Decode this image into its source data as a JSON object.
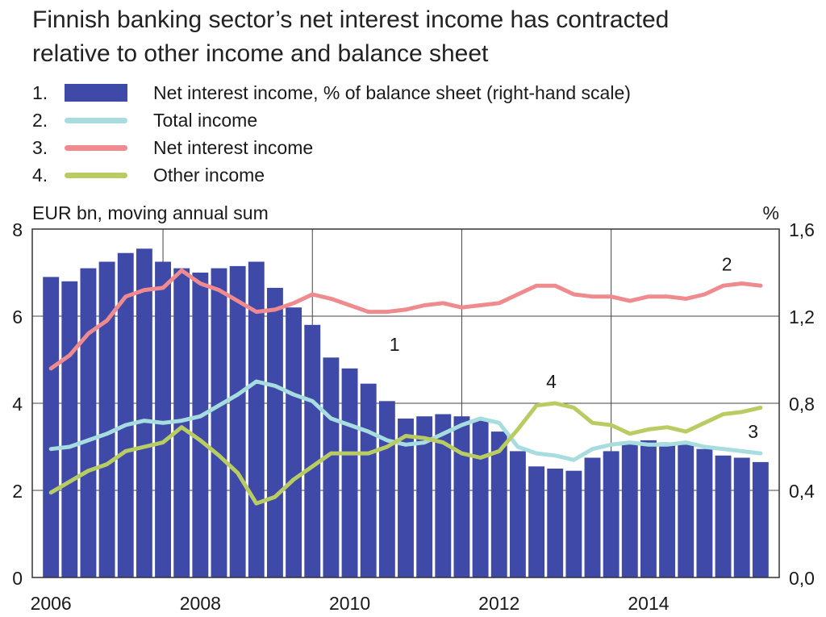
{
  "title_line1": "Finnish banking sector’s net interest income has contracted",
  "title_line2": "relative to other income and balance sheet",
  "left_axis_label": "EUR bn, moving annual sum",
  "right_axis_label": "%",
  "legend": [
    {
      "num": "1.",
      "label": "Net interest income, % of balance sheet (right-hand scale)",
      "kind": "bar",
      "color": "#3f4aa8"
    },
    {
      "num": "2.",
      "label": "Total income",
      "kind": "line",
      "color": "#a8dde0"
    },
    {
      "num": "3.",
      "label": "Net interest income",
      "kind": "line",
      "color": "#ef8a8e"
    },
    {
      "num": "4.",
      "label": "Other income",
      "kind": "line",
      "color": "#b9cc62"
    }
  ],
  "chart_data": {
    "type": "bar+line",
    "x_ticks": [
      "2006",
      "2008",
      "2010",
      "2012",
      "2014"
    ],
    "x_range": [
      2005.75,
      2015.75
    ],
    "left_axis": {
      "ticks": [
        "0",
        "2",
        "4",
        "6",
        "8"
      ],
      "range": [
        0,
        8
      ]
    },
    "right_axis": {
      "ticks": [
        "0,0",
        "0,4",
        "0,8",
        "1,2",
        "1,6"
      ],
      "range": [
        0,
        1.6
      ]
    },
    "grid": true,
    "bars": {
      "name": "Net interest income, % of balance sheet (right-hand scale)",
      "axis": "right",
      "color": "#3f4aa8",
      "x": [
        2006.0,
        2006.25,
        2006.5,
        2006.75,
        2007.0,
        2007.25,
        2007.5,
        2007.75,
        2008.0,
        2008.25,
        2008.5,
        2008.75,
        2009.0,
        2009.25,
        2009.5,
        2009.75,
        2010.0,
        2010.25,
        2010.5,
        2010.75,
        2011.0,
        2011.25,
        2011.5,
        2011.75,
        2012.0,
        2012.25,
        2012.5,
        2012.75,
        2013.0,
        2013.25,
        2013.5,
        2013.75,
        2014.0,
        2014.25,
        2014.5,
        2014.75,
        2015.0,
        2015.25,
        2015.5
      ],
      "values": [
        1.38,
        1.36,
        1.42,
        1.45,
        1.49,
        1.51,
        1.45,
        1.42,
        1.4,
        1.42,
        1.43,
        1.45,
        1.33,
        1.24,
        1.16,
        1.01,
        0.96,
        0.89,
        0.81,
        0.73,
        0.74,
        0.75,
        0.74,
        0.72,
        0.67,
        0.58,
        0.51,
        0.5,
        0.49,
        0.55,
        0.58,
        0.62,
        0.63,
        0.62,
        0.61,
        0.59,
        0.56,
        0.55,
        0.53
      ]
    },
    "series": [
      {
        "name": "Total income",
        "axis": "left",
        "color": "#a8dde0",
        "x": [
          2006.0,
          2006.25,
          2006.5,
          2006.75,
          2007.0,
          2007.25,
          2007.5,
          2007.75,
          2008.0,
          2008.25,
          2008.5,
          2008.75,
          2009.0,
          2009.25,
          2009.5,
          2009.75,
          2010.0,
          2010.25,
          2010.5,
          2010.75,
          2011.0,
          2011.25,
          2011.5,
          2011.75,
          2012.0,
          2012.25,
          2012.5,
          2012.75,
          2013.0,
          2013.25,
          2013.5,
          2013.75,
          2014.0,
          2014.25,
          2014.5,
          2014.75,
          2015.0,
          2015.25,
          2015.5
        ],
        "values": [
          2.95,
          3.0,
          3.15,
          3.3,
          3.5,
          3.6,
          3.55,
          3.6,
          3.7,
          3.95,
          4.2,
          4.5,
          4.4,
          4.2,
          4.05,
          3.65,
          3.5,
          3.35,
          3.15,
          3.05,
          3.1,
          3.3,
          3.5,
          3.65,
          3.55,
          3.0,
          2.85,
          2.8,
          2.7,
          2.95,
          3.05,
          3.1,
          3.05,
          3.05,
          3.1,
          3.0,
          2.95,
          2.9,
          2.85
        ]
      },
      {
        "name": "Net interest income",
        "axis": "left",
        "color": "#ef8a8e",
        "x": [
          2006.0,
          2006.25,
          2006.5,
          2006.75,
          2007.0,
          2007.25,
          2007.5,
          2007.75,
          2008.0,
          2008.25,
          2008.5,
          2008.75,
          2009.0,
          2009.25,
          2009.5,
          2009.75,
          2010.0,
          2010.25,
          2010.5,
          2010.75,
          2011.0,
          2011.25,
          2011.5,
          2011.75,
          2012.0,
          2012.25,
          2012.5,
          2012.75,
          2013.0,
          2013.25,
          2013.5,
          2013.75,
          2014.0,
          2014.25,
          2014.5,
          2014.75,
          2015.0,
          2015.25,
          2015.5
        ],
        "values": [
          4.8,
          5.1,
          5.6,
          5.9,
          6.45,
          6.6,
          6.65,
          7.05,
          6.75,
          6.6,
          6.35,
          6.1,
          6.15,
          6.3,
          6.5,
          6.4,
          6.25,
          6.1,
          6.1,
          6.15,
          6.25,
          6.3,
          6.2,
          6.25,
          6.3,
          6.5,
          6.7,
          6.7,
          6.5,
          6.45,
          6.45,
          6.35,
          6.45,
          6.45,
          6.4,
          6.5,
          6.7,
          6.75,
          6.7
        ]
      },
      {
        "name": "Other income",
        "axis": "left",
        "color": "#b9cc62",
        "x": [
          2006.0,
          2006.25,
          2006.5,
          2006.75,
          2007.0,
          2007.25,
          2007.5,
          2007.75,
          2008.0,
          2008.25,
          2008.5,
          2008.75,
          2009.0,
          2009.25,
          2009.5,
          2009.75,
          2010.0,
          2010.25,
          2010.5,
          2010.75,
          2011.0,
          2011.25,
          2011.5,
          2011.75,
          2012.0,
          2012.25,
          2012.5,
          2012.75,
          2013.0,
          2013.25,
          2013.5,
          2013.75,
          2014.0,
          2014.25,
          2014.5,
          2014.75,
          2015.0,
          2015.25,
          2015.5
        ],
        "values": [
          1.95,
          2.2,
          2.45,
          2.6,
          2.9,
          3.0,
          3.1,
          3.45,
          3.15,
          2.8,
          2.4,
          1.7,
          1.85,
          2.25,
          2.55,
          2.85,
          2.85,
          2.85,
          3.0,
          3.25,
          3.2,
          3.1,
          2.85,
          2.75,
          2.9,
          3.4,
          3.95,
          4.0,
          3.9,
          3.55,
          3.5,
          3.3,
          3.4,
          3.45,
          3.35,
          3.55,
          3.75,
          3.8,
          3.9
        ]
      }
    ],
    "annotations": [
      {
        "text": "1",
        "x": 2010.6,
        "y": 5.2
      },
      {
        "text": "2",
        "x": 2015.05,
        "y": 7.05
      },
      {
        "text": "3",
        "x": 2015.4,
        "y": 3.2
      },
      {
        "text": "4",
        "x": 2012.7,
        "y": 4.35
      }
    ]
  }
}
